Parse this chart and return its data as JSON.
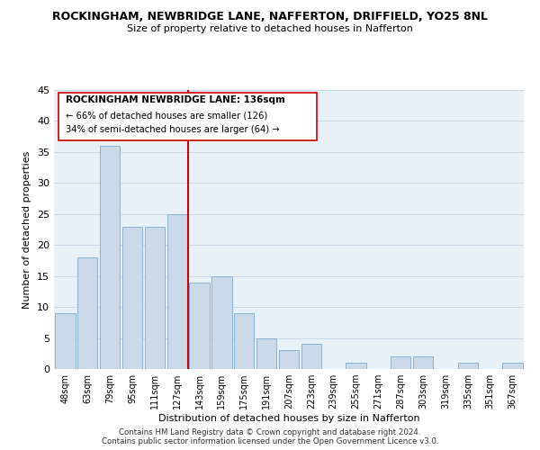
{
  "title": "ROCKINGHAM, NEWBRIDGE LANE, NAFFERTON, DRIFFIELD, YO25 8NL",
  "subtitle": "Size of property relative to detached houses in Nafferton",
  "xlabel": "Distribution of detached houses by size in Nafferton",
  "ylabel": "Number of detached properties",
  "bar_color": "#ccd9e8",
  "bar_edge_color": "#7aaaca",
  "categories": [
    "48sqm",
    "63sqm",
    "79sqm",
    "95sqm",
    "111sqm",
    "127sqm",
    "143sqm",
    "159sqm",
    "175sqm",
    "191sqm",
    "207sqm",
    "223sqm",
    "239sqm",
    "255sqm",
    "271sqm",
    "287sqm",
    "303sqm",
    "319sqm",
    "335sqm",
    "351sqm",
    "367sqm"
  ],
  "values": [
    9,
    18,
    36,
    23,
    23,
    25,
    14,
    15,
    9,
    5,
    3,
    4,
    0,
    1,
    0,
    2,
    2,
    0,
    1,
    0,
    1
  ],
  "ylim": [
    0,
    45
  ],
  "yticks": [
    0,
    5,
    10,
    15,
    20,
    25,
    30,
    35,
    40,
    45
  ],
  "vline_x": 5.5,
  "vline_color": "#cc0000",
  "annotation_title": "ROCKINGHAM NEWBRIDGE LANE: 136sqm",
  "annotation_line1": "← 66% of detached houses are smaller (126)",
  "annotation_line2": "34% of semi-detached houses are larger (64) →",
  "annotation_box_color": "#ffffff",
  "annotation_box_edge": "#cc0000",
  "footer1": "Contains HM Land Registry data © Crown copyright and database right 2024.",
  "footer2": "Contains public sector information licensed under the Open Government Licence v3.0.",
  "background_color": "#ffffff",
  "plot_bg_color": "#e8f0f8",
  "grid_color": "#c8d8e8"
}
